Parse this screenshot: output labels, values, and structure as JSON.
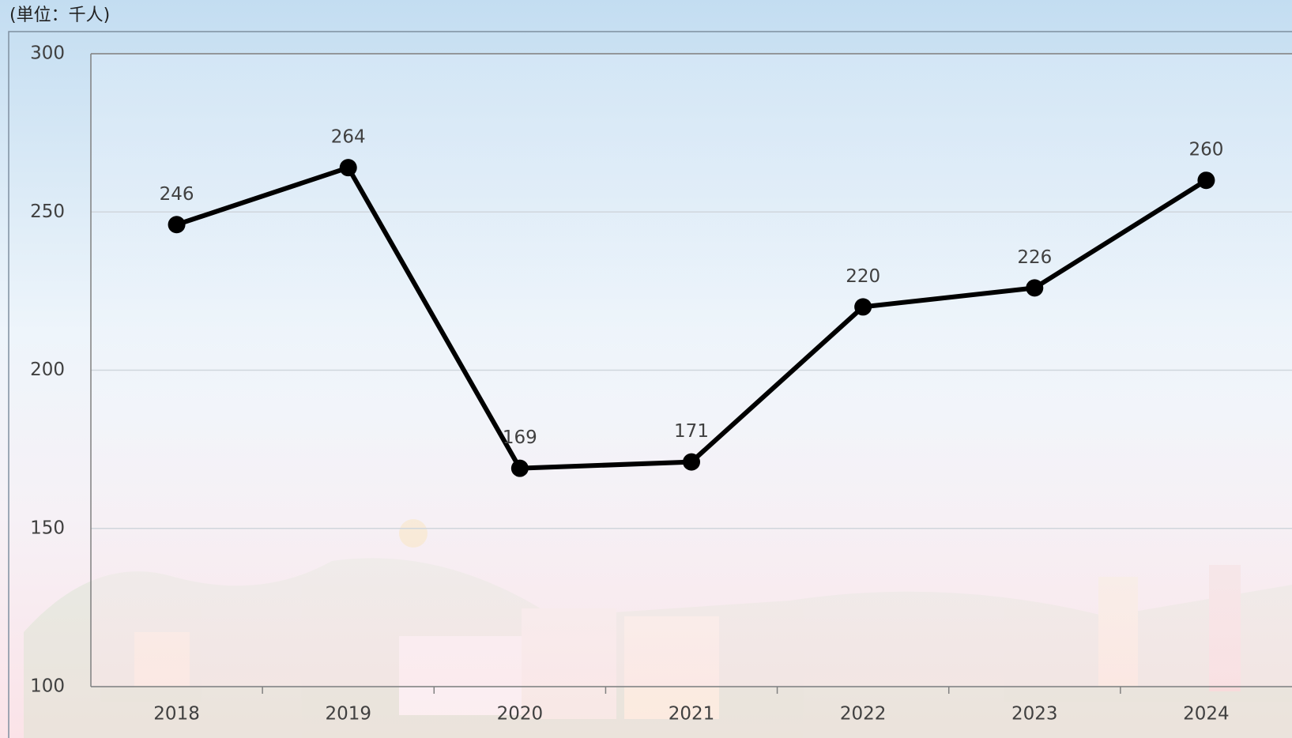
{
  "chart_data": {
    "type": "line",
    "unit_label": "(単位：千人)",
    "categories": [
      "2018",
      "2019",
      "2020",
      "2021",
      "2022",
      "2023",
      "2024"
    ],
    "values": [
      246,
      264,
      169,
      171,
      220,
      226,
      260
    ],
    "color": "#000000",
    "ylim": [
      100,
      300
    ],
    "yticks": [
      100,
      150,
      200,
      250,
      300
    ],
    "grid": true
  }
}
